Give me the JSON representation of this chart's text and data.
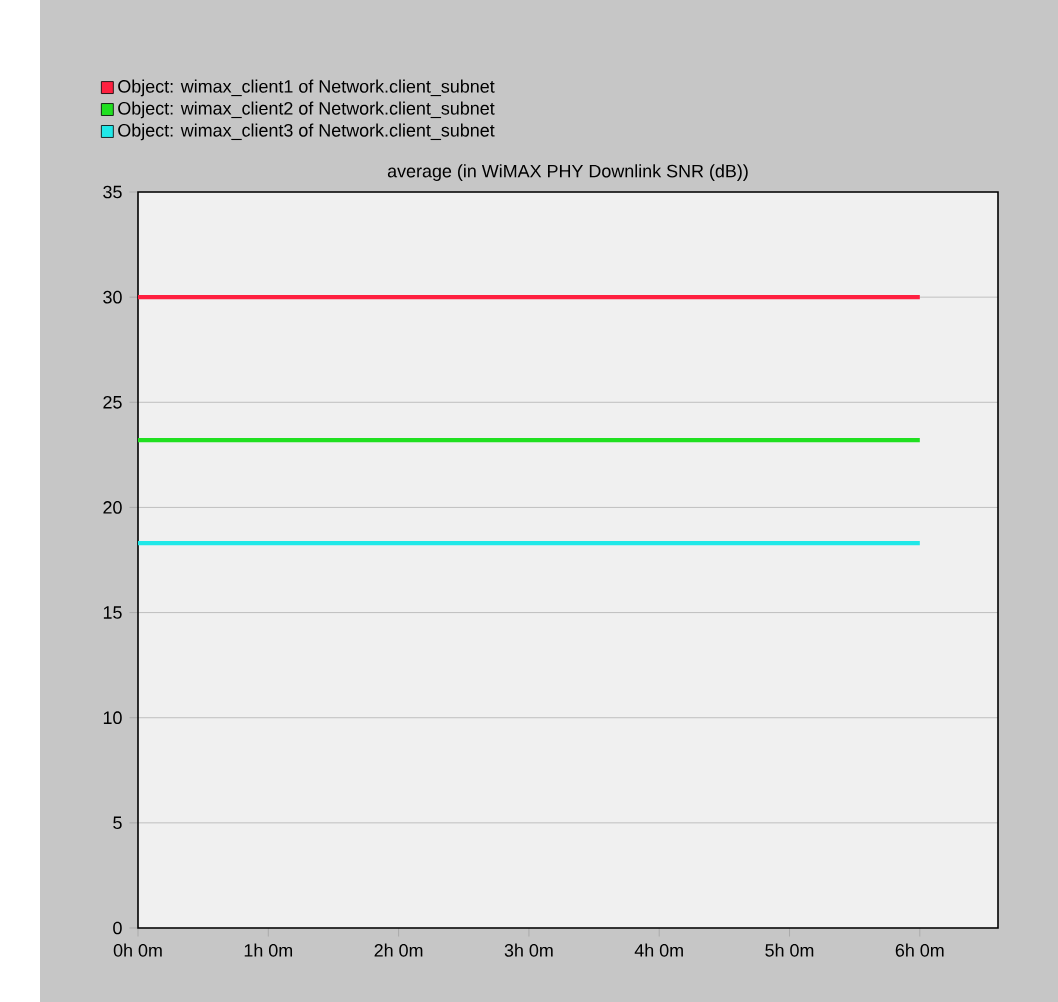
{
  "chart_data": {
    "type": "line",
    "title": "average (in WiMAX PHY Downlink SNR (dB))",
    "categories": [
      "0h 0m",
      "1h 0m",
      "2h 0m",
      "3h 0m",
      "4h 0m",
      "5h 0m",
      "6h 0m"
    ],
    "series": [
      {
        "name": "Object: wimax_client1 of Network.client_subnet",
        "color": "#ff2040",
        "values": [
          30.0,
          30.0,
          30.0,
          30.0,
          30.0,
          30.0,
          30.0
        ]
      },
      {
        "name": "Object: wimax_client2 of Network.client_subnet",
        "color": "#20e020",
        "values": [
          23.2,
          23.2,
          23.2,
          23.2,
          23.2,
          23.2,
          23.2
        ]
      },
      {
        "name": "Object: wimax_client3 of Network.client_subnet",
        "color": "#20e8e8",
        "values": [
          18.3,
          18.3,
          18.3,
          18.3,
          18.3,
          18.3,
          18.3
        ]
      }
    ],
    "ylim": [
      0,
      35
    ],
    "yticks": [
      0,
      5,
      10,
      15,
      20,
      25,
      30,
      35
    ],
    "grid": "y",
    "legend": "top",
    "marker": "none",
    "line_style": "solid"
  }
}
